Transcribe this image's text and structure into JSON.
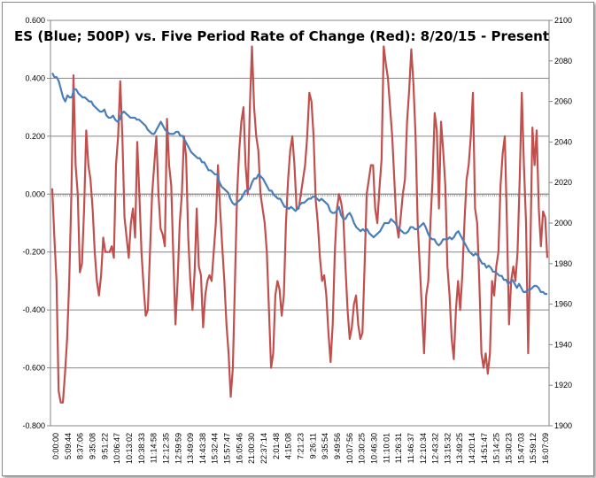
{
  "chart_data": {
    "type": "line",
    "title": "ES (Blue; 500P) vs. Five Period Rate of Change (Red):  8/20/15 - Present",
    "xlabel": "",
    "y_left": {
      "label": "",
      "min": -0.8,
      "max": 0.6,
      "ticks": [
        "-0.800",
        "-0.600",
        "-0.400",
        "-0.200",
        "0.000",
        "0.200",
        "0.400",
        "0.600"
      ],
      "tick_values": [
        -0.8,
        -0.6,
        -0.4,
        -0.2,
        0.0,
        0.2,
        0.4,
        0.6
      ]
    },
    "y_right": {
      "label": "",
      "min": 1900,
      "max": 2100,
      "ticks": [
        "1900",
        "1920",
        "1940",
        "1960",
        "1980",
        "2000",
        "2020",
        "2040",
        "2060",
        "2080",
        "2100"
      ],
      "tick_values": [
        1900,
        1920,
        1940,
        1960,
        1980,
        2000,
        2020,
        2040,
        2060,
        2080,
        2100
      ]
    },
    "x_tick_labels": [
      "0:00:00",
      "5:09:44",
      "8:37:06",
      "9:35:08",
      "9:51:22",
      "10:06:47",
      "10:13:02",
      "10:38:33",
      "11:14:58",
      "12:12:35",
      "12:59:59",
      "13:49:09",
      "14:43:38",
      "15:32:44",
      "15:57:47",
      "16:05:46",
      "21:00:30",
      "22:37:14",
      "2:01:48",
      "4:15:08",
      "7:21:23",
      "9:26:11",
      "9:35:54",
      "9:49:56",
      "10:07:56",
      "10:30:25",
      "10:46:30",
      "11:10:01",
      "11:26:31",
      "11:46:37",
      "12:10:34",
      "12:43:32",
      "13:15:32",
      "13:49:25",
      "14:20:14",
      "14:51:47",
      "15:14:25",
      "15:30:23",
      "15:47:03",
      "15:59:12",
      "16:07:09"
    ],
    "grid": true,
    "series": [
      {
        "name": "ES (Blue; 500P)",
        "axis": "right",
        "color": "#4a7ebb",
        "values": [
          2074,
          2072,
          2072,
          2070,
          2066,
          2062,
          2060,
          2063,
          2062,
          2062,
          2066,
          2066,
          2064,
          2063,
          2062,
          2062,
          2061,
          2060,
          2060,
          2058,
          2057,
          2056,
          2055,
          2055,
          2056,
          2053,
          2052,
          2052,
          2053,
          2051,
          2050,
          2051,
          2054,
          2055,
          2054,
          2053,
          2052,
          2052,
          2052,
          2051,
          2051,
          2050,
          2049,
          2048,
          2046,
          2045,
          2044,
          2044,
          2046,
          2048,
          2050,
          2048,
          2046,
          2045,
          2044,
          2044,
          2044,
          2045,
          2045,
          2043,
          2043,
          2041,
          2039,
          2037,
          2035,
          2034,
          2033,
          2032,
          2032,
          2030,
          2030,
          2028,
          2026,
          2026,
          2025,
          2024,
          2024,
          2020,
          2018,
          2017,
          2016,
          2015,
          2012,
          2010,
          2009,
          2010,
          2011,
          2012,
          2014,
          2016,
          2016,
          2017,
          2020,
          2022,
          2022,
          2024,
          2023,
          2022,
          2020,
          2018,
          2016,
          2016,
          2014,
          2013,
          2012,
          2012,
          2010,
          2008,
          2008,
          2007,
          2008,
          2007,
          2006,
          2007,
          2009,
          2010,
          2010,
          2011,
          2012,
          2012,
          2013,
          2013,
          2012,
          2011,
          2012,
          2011,
          2010,
          2009,
          2006,
          2005,
          2005,
          2006,
          2008,
          2004,
          2002,
          2002,
          2004,
          2005,
          2003,
          2000,
          1998,
          1997,
          1996,
          1997,
          1996,
          1997,
          1995,
          1994,
          1993,
          1994,
          1995,
          1996,
          1998,
          2000,
          2000,
          2000,
          2002,
          2001,
          2000,
          1998,
          1997,
          1996,
          1995,
          1995,
          1996,
          1998,
          1998,
          1997,
          1997,
          1998,
          1999,
          2000,
          1998,
          1995,
          1993,
          1992,
          1992,
          1990,
          1989,
          1990,
          1992,
          1992,
          1992,
          1993,
          1992,
          1993,
          1995,
          1996,
          1994,
          1992,
          1990,
          1988,
          1986,
          1985,
          1984,
          1985,
          1984,
          1982,
          1980,
          1980,
          1978,
          1979,
          1978,
          1976,
          1976,
          1975,
          1974,
          1974,
          1972,
          1972,
          1970,
          1971,
          1972,
          1970,
          1968,
          1970,
          1968,
          1966,
          1966,
          1967,
          1967,
          1968,
          1969,
          1969,
          1968,
          1966,
          1966,
          1965,
          1965
        ]
      },
      {
        "name": "Five Period Rate of Change (Red)",
        "axis": "left",
        "color": "#c0504d",
        "values": [
          0.02,
          -0.15,
          -0.3,
          -0.68,
          -0.72,
          -0.72,
          -0.62,
          -0.5,
          -0.3,
          0.0,
          0.41,
          0.1,
          0.0,
          -0.27,
          -0.24,
          -0.05,
          0.22,
          0.1,
          0.05,
          -0.05,
          -0.2,
          -0.3,
          -0.35,
          -0.28,
          -0.15,
          -0.2,
          -0.2,
          -0.2,
          -0.18,
          -0.22,
          0.1,
          0.2,
          0.39,
          0.2,
          -0.08,
          -0.15,
          -0.22,
          -0.1,
          -0.05,
          -0.15,
          0.18,
          0.0,
          -0.2,
          -0.32,
          -0.42,
          -0.4,
          -0.2,
          0.0,
          0.1,
          0.2,
          0.0,
          -0.12,
          -0.14,
          -0.18,
          0.26,
          0.1,
          0.03,
          -0.22,
          -0.45,
          -0.3,
          -0.1,
          0.0,
          0.2,
          0.13,
          -0.15,
          -0.3,
          -0.4,
          -0.27,
          -0.05,
          -0.25,
          -0.28,
          -0.46,
          -0.35,
          -0.3,
          -0.28,
          -0.3,
          -0.2,
          -0.1,
          0.1,
          -0.05,
          -0.18,
          -0.3,
          -0.45,
          -0.55,
          -0.7,
          -0.6,
          -0.3,
          0.0,
          0.15,
          0.25,
          0.3,
          0.1,
          0.0,
          0.3,
          0.51,
          0.3,
          0.2,
          0.15,
          0.0,
          -0.05,
          -0.1,
          -0.2,
          -0.4,
          -0.6,
          -0.55,
          -0.35,
          -0.3,
          -0.33,
          -0.42,
          -0.35,
          -0.1,
          0.05,
          0.15,
          0.2,
          0.1,
          -0.05,
          -0.05,
          0.0,
          0.05,
          0.1,
          0.2,
          0.35,
          0.32,
          0.2,
          -0.02,
          -0.1,
          -0.22,
          -0.3,
          -0.28,
          -0.35,
          -0.48,
          -0.58,
          -0.45,
          -0.2,
          -0.05,
          0.0,
          -0.03,
          -0.08,
          -0.25,
          -0.4,
          -0.5,
          -0.46,
          -0.38,
          -0.35,
          -0.45,
          -0.5,
          -0.48,
          -0.25,
          0.0,
          0.05,
          0.1,
          0.1,
          -0.05,
          -0.1,
          0.02,
          0.12,
          0.51,
          0.45,
          0.4,
          0.3,
          0.2,
          0.05,
          -0.1,
          -0.15,
          -0.08,
          0.0,
          0.05,
          0.25,
          0.36,
          0.5,
          0.38,
          0.2,
          -0.1,
          -0.25,
          -0.4,
          -0.55,
          -0.35,
          -0.3,
          -0.1,
          0.05,
          0.28,
          0.22,
          -0.05,
          0.25,
          0.15,
          0.03,
          -0.25,
          -0.35,
          -0.5,
          -0.57,
          -0.4,
          -0.3,
          -0.4,
          -0.28,
          -0.1,
          0.05,
          0.1,
          0.2,
          0.35,
          -0.05,
          -0.1,
          -0.3,
          -0.55,
          -0.6,
          -0.55,
          -0.62,
          -0.55,
          -0.3,
          -0.35,
          -0.25,
          -0.2,
          0.03,
          0.14,
          0.2,
          -0.1,
          -0.45,
          -0.3,
          -0.25,
          -0.3,
          -0.2,
          0.05,
          0.35,
          0.1,
          -0.1,
          -0.55,
          -0.2,
          0.23,
          0.1,
          0.22,
          -0.05,
          -0.18,
          -0.06,
          -0.08,
          -0.22
        ]
      }
    ]
  }
}
